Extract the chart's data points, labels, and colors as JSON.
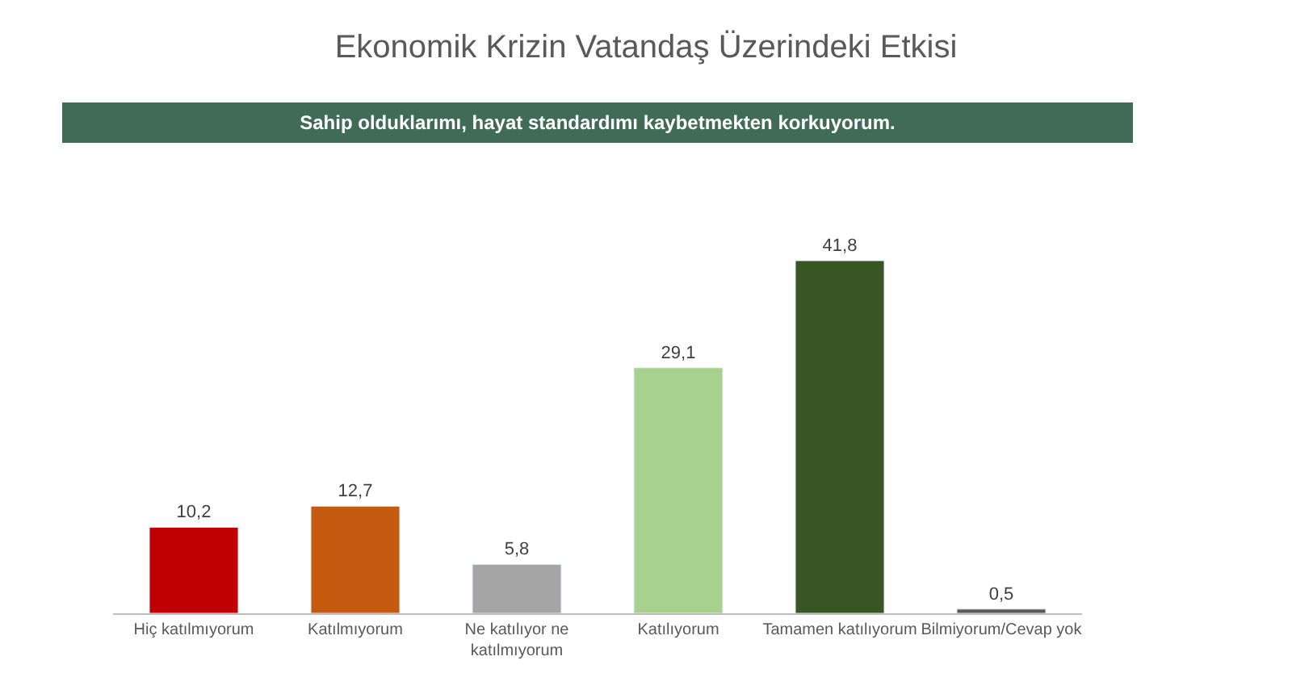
{
  "chart_data": {
    "type": "bar",
    "title": "Ekonomik Krizin Vatandaş Üzerindeki Etkisi",
    "subtitle": "Sahip olduklarımı, hayat standardımı kaybetmekten korkuyorum.",
    "categories": [
      "Hiç katılmıyorum",
      "Katılmıyorum",
      "Ne katılıyor ne katılmıyorum",
      "Katılıyorum",
      "Tamamen katılıyorum",
      "Bilmiyorum/Cevap yok"
    ],
    "values": [
      10.2,
      12.7,
      5.8,
      29.1,
      41.8,
      0.5
    ],
    "value_labels": [
      "10,2",
      "12,7",
      "5,8",
      "29,1",
      "41,8",
      "0,5"
    ],
    "colors": [
      "#c00000",
      "#c55a11",
      "#a5a5a5",
      "#a9d18e",
      "#375623",
      "#595959"
    ]
  }
}
